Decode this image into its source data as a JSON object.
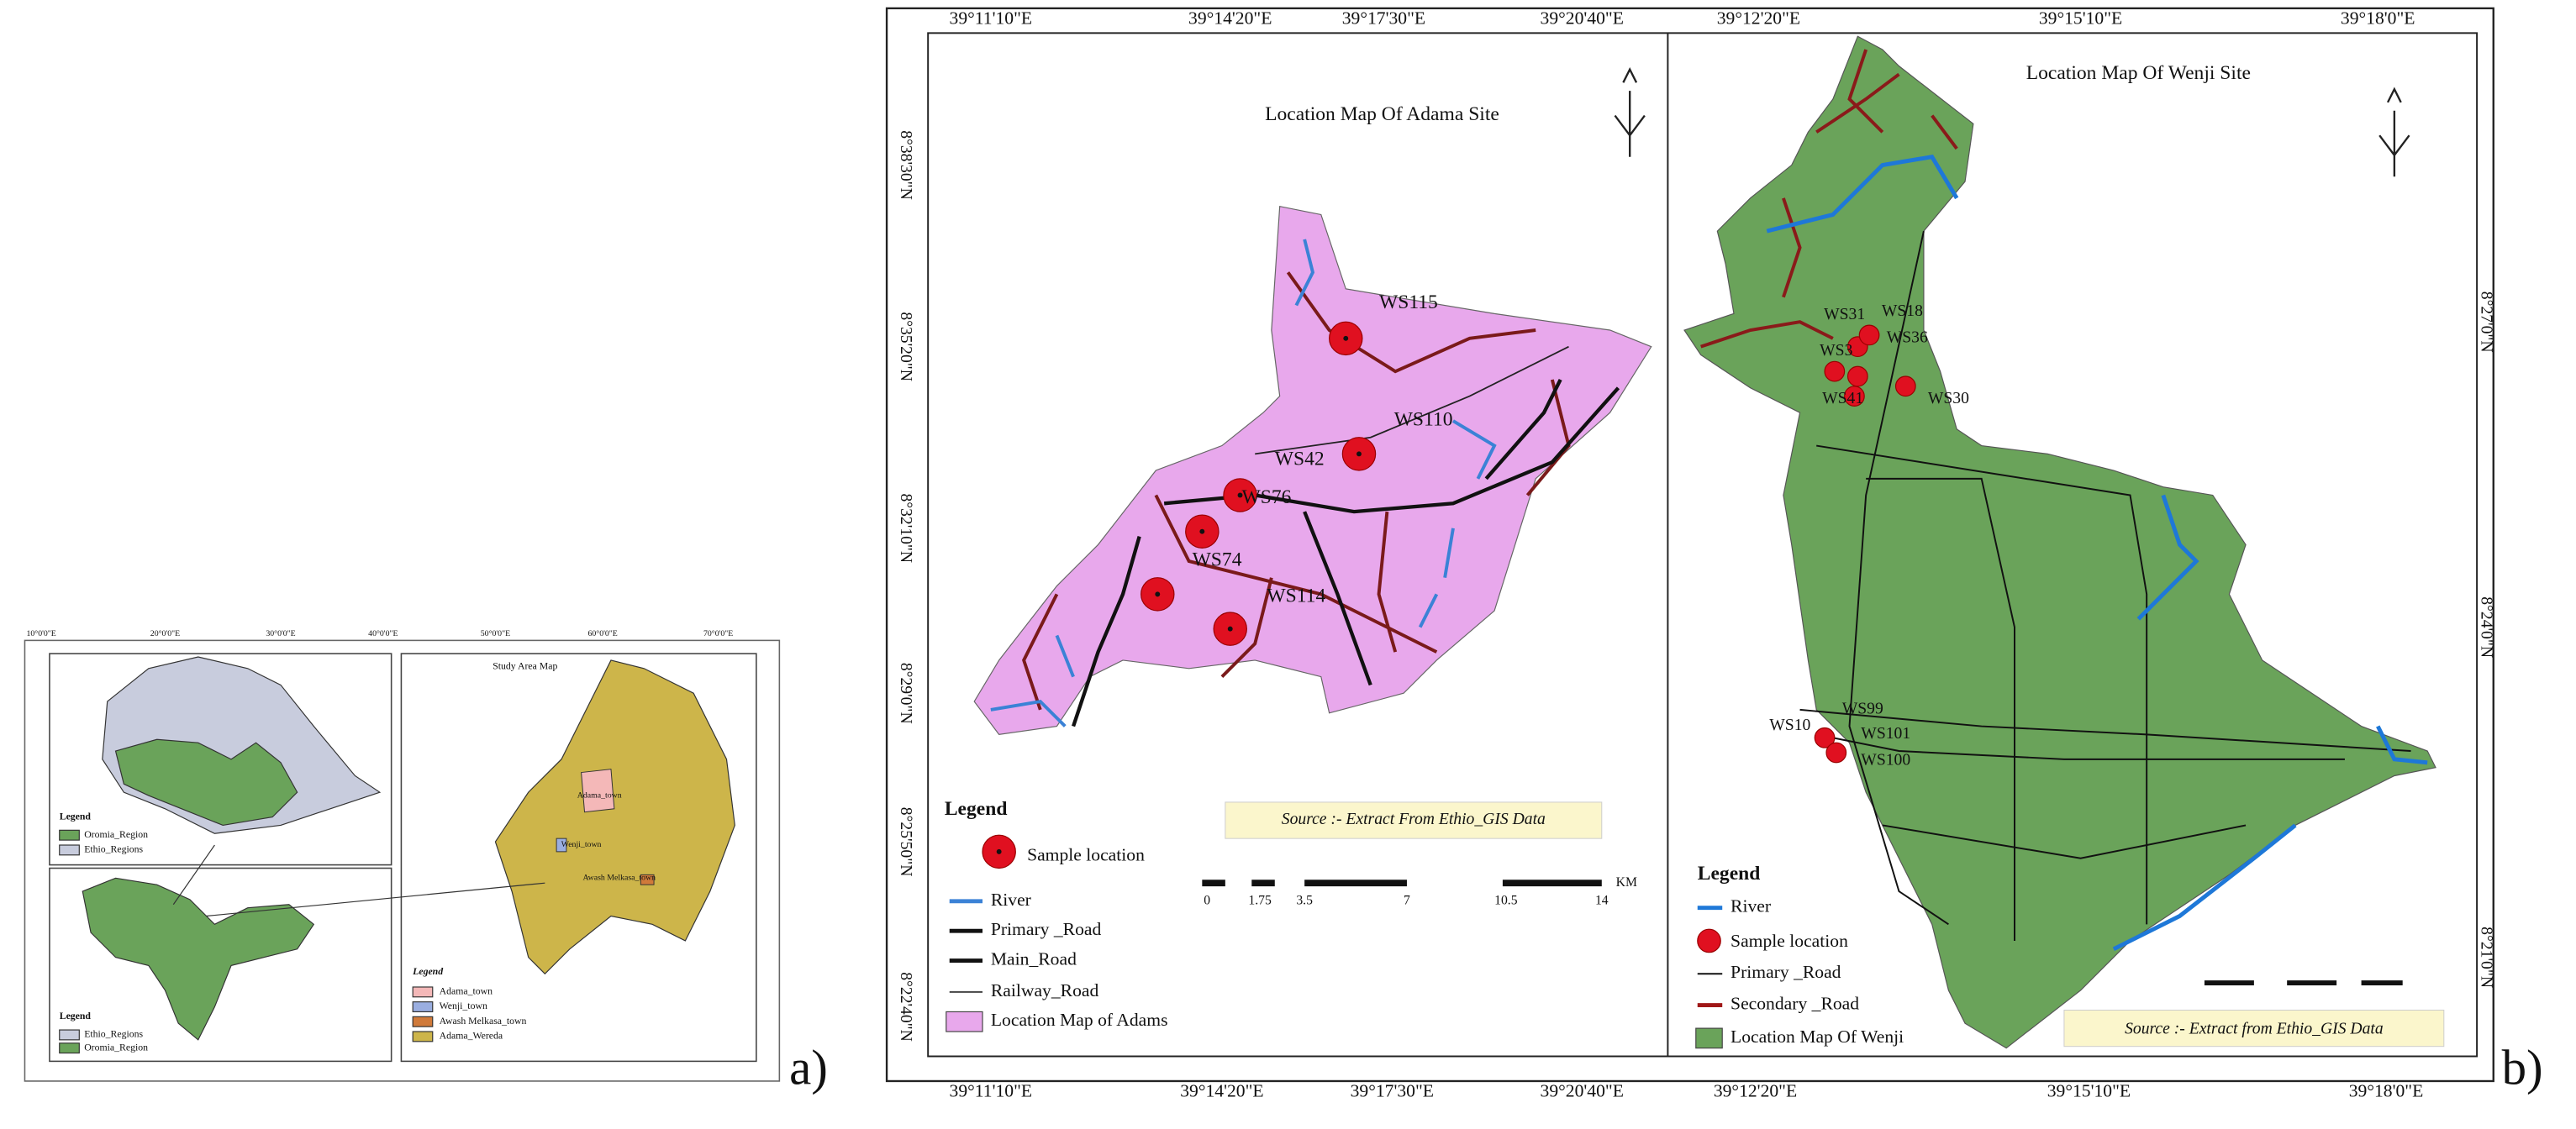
{
  "panel_a": {
    "label": "a)",
    "lon_labels": [
      "10°0'0\"E",
      "20°0'0\"E",
      "30°0'0\"E",
      "40°0'0\"E",
      "50°0'0\"E",
      "60°0'0\"E",
      "70°0'0\"E"
    ],
    "ethiopia_legend": {
      "title": "Legend",
      "items": [
        "Oromia_Region",
        "Ethio_Regions"
      ]
    },
    "oromia_legend": {
      "title": "Legend",
      "items": [
        "Ethio_Regions",
        "Oromia_Region"
      ]
    },
    "study_area": {
      "title": "Study Area Map",
      "towns": [
        "Adama_town",
        "Wenji_town",
        "Awash Melkasa_town"
      ],
      "legend": {
        "title": "Legend",
        "items": [
          "Adama_town",
          "Wenji_town",
          "Awash Melkasa_town",
          "Adama_Wereda"
        ]
      }
    }
  },
  "panel_b": {
    "label": "b)",
    "adama": {
      "title": "Location Map Of Adama Site",
      "top_lon": [
        "39°11'10\"E",
        "39°14'20\"E",
        "39°17'30\"E",
        "39°20'40\"E"
      ],
      "bottom_lon": [
        "39°11'10\"E",
        "39°14'20\"E",
        "39°17'30\"E",
        "39°20'40\"E"
      ],
      "left_lat": [
        "8°38'30\"N",
        "8°35'20\"N",
        "8°32'10\"N",
        "8°29'0\"N",
        "8°25'50\"N",
        "8°22'40\"N"
      ],
      "samples": [
        "WS115",
        "WS110",
        "WS42",
        "WS76",
        "WS74",
        "WS114"
      ],
      "source": "Source :- Extract From Ethio_GIS Data",
      "scale": [
        "0",
        "1.75",
        "3.5",
        "7",
        "10.5",
        "14",
        "KM"
      ],
      "legend": {
        "title": "Legend",
        "items": [
          "Sample location",
          "River",
          "Primary _Road",
          "Main_Road",
          "Railway_Road",
          "Location Map of Adams"
        ]
      }
    },
    "wenji": {
      "title": "Location Map Of Wenji Site",
      "top_lon": [
        "39°12'20\"E",
        "39°15'10\"E",
        "39°18'0\"E"
      ],
      "bottom_lon": [
        "39°12'20\"E",
        "39°15'10\"E",
        "39°18'0\"E"
      ],
      "right_lat": [
        "8°27'0\"N",
        "8°24'0\"N",
        "8°21'0\"N"
      ],
      "samples": [
        "WS31",
        "WS18",
        "WS36",
        "WS3",
        "WS41",
        "WS30",
        "WS99",
        "WS10",
        "WS101",
        "WS100"
      ],
      "source": "Source :- Extract from Ethio_GIS Data",
      "legend": {
        "title": "Legend",
        "items": [
          "River",
          "Sample location",
          "Primary _Road",
          "Secondary _Road",
          "Location Map Of Wenji"
        ]
      }
    }
  }
}
